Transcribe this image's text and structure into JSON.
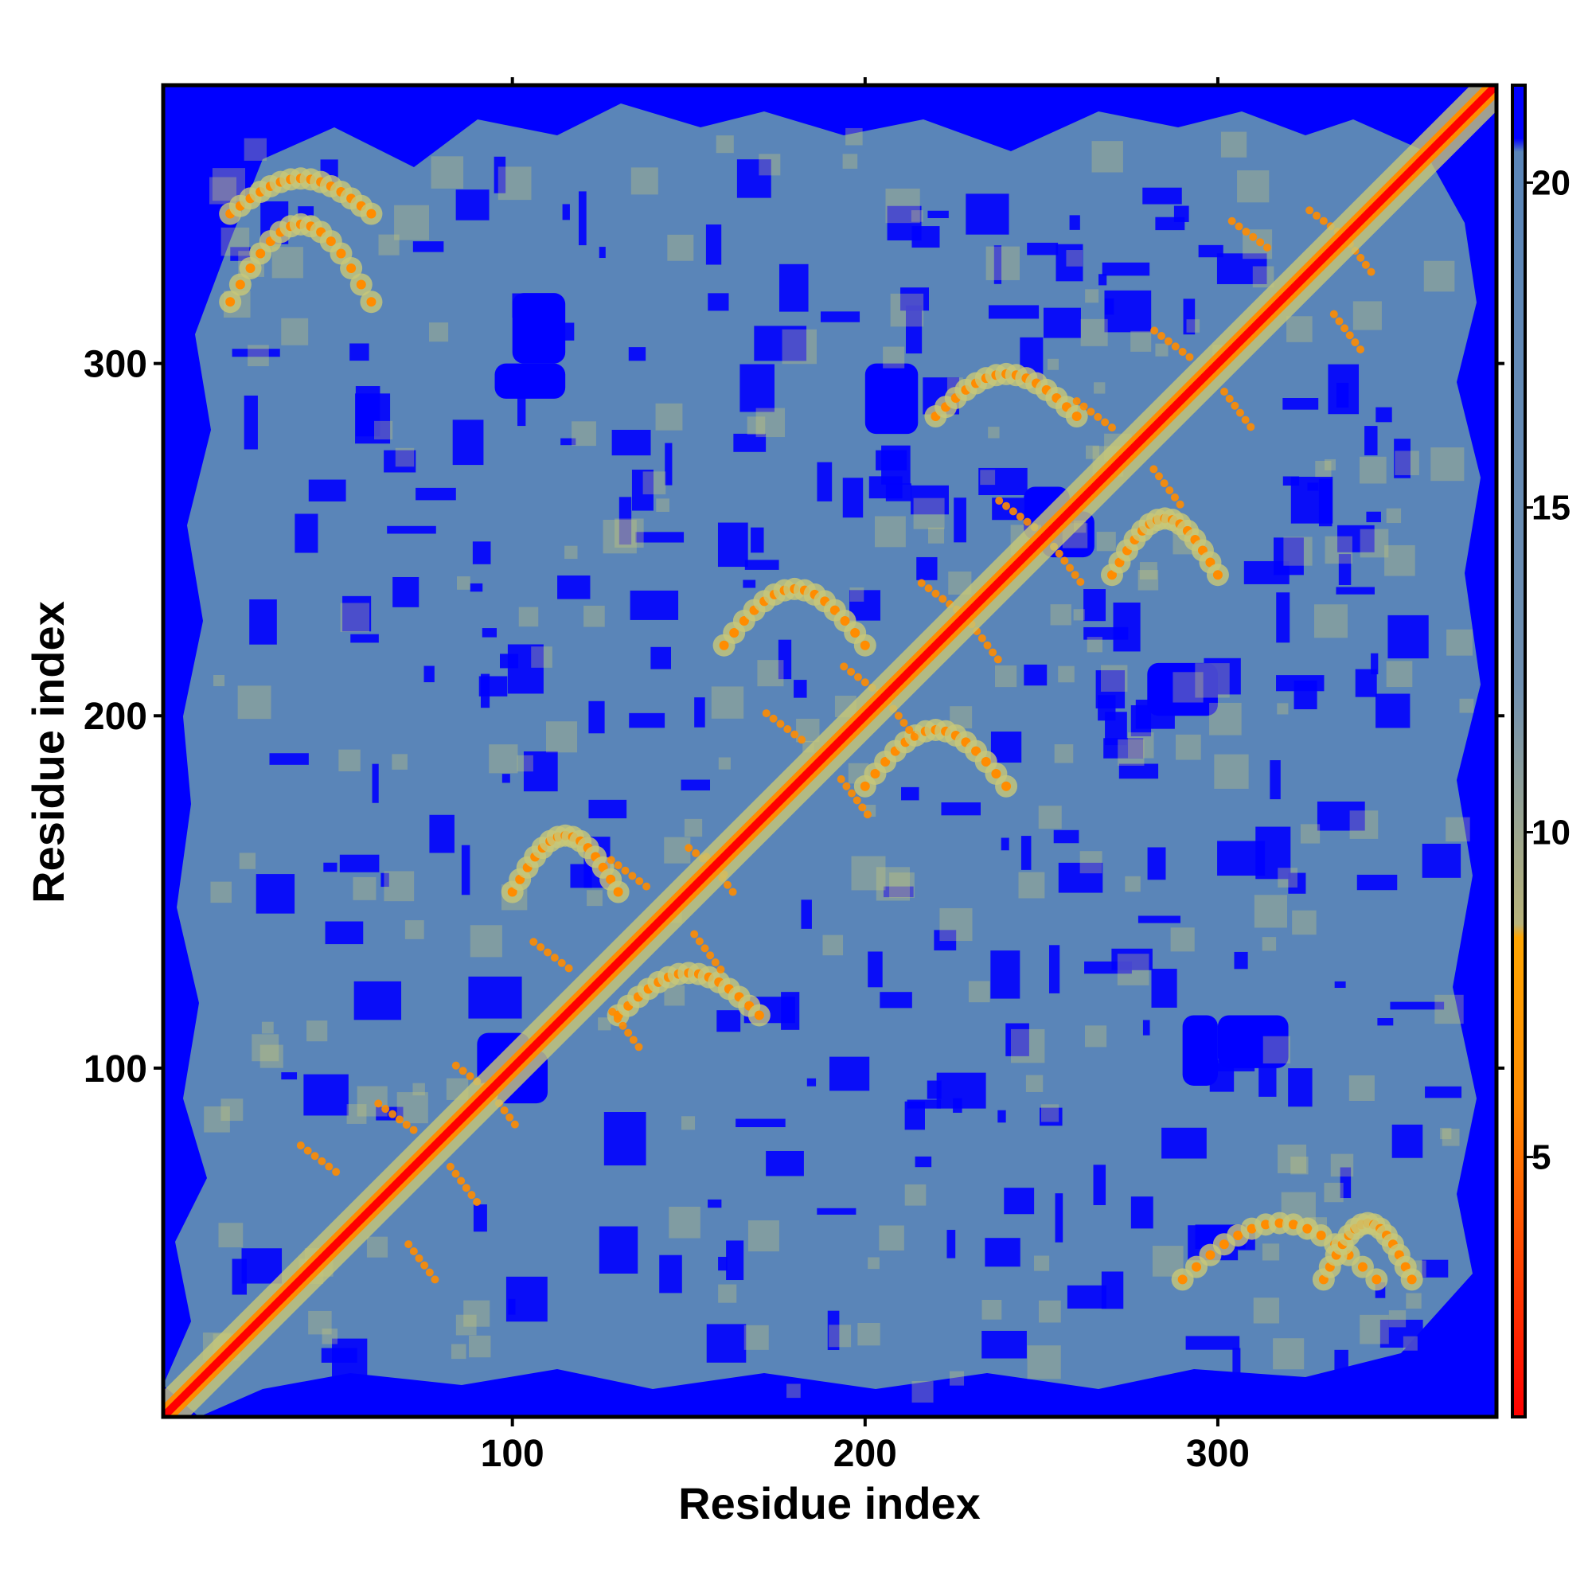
{
  "chart_data": {
    "type": "heatmap",
    "title": "",
    "xlabel": "Residue index",
    "ylabel": "Residue index",
    "xlim": [
      1,
      379
    ],
    "ylim": [
      1,
      379
    ],
    "x_ticks": [
      100,
      200,
      300
    ],
    "y_ticks": [
      100,
      200,
      300
    ],
    "colorbar": {
      "range": [
        1,
        21.5
      ],
      "ticks": [
        5,
        10,
        15,
        20
      ],
      "stops": [
        {
          "value": 1,
          "color": "#ff0000"
        },
        {
          "value": 6,
          "color": "#ff8c00"
        },
        {
          "value": 8.5,
          "color": "#ffa500"
        },
        {
          "value": 11,
          "color": "#9aaa88"
        },
        {
          "value": 14,
          "color": "#5e87b8"
        },
        {
          "value": 20,
          "color": "#5a85b8"
        },
        {
          "value": 21,
          "color": "#0000ff"
        }
      ]
    },
    "colors": {
      "far_contact": "#0000ff",
      "background_distance": "#5a85b8",
      "mid_distance": "#c8c878",
      "close_contact": "#ff8c00",
      "diagonal": "#ff0000"
    },
    "matrix_description": "symmetric residue-residue distance map, diagonal values near 0, off-diagonal mostly ~15-20, regions > 20 shown as dark blue",
    "contact_bands": [
      {
        "i_range": [
          20,
          60
        ],
        "j_range": [
          290,
          345
        ]
      },
      {
        "i_range": [
          100,
          130
        ],
        "j_range": [
          130,
          170
        ]
      },
      {
        "i_range": [
          160,
          200
        ],
        "j_range": [
          200,
          240
        ]
      },
      {
        "i_range": [
          220,
          260
        ],
        "j_range": [
          270,
          300
        ]
      },
      {
        "i_range": [
          330,
          355
        ],
        "j_range": [
          20,
          60
        ]
      }
    ],
    "far_regions": [
      {
        "i_range": [
          95,
          115
        ],
        "j_range": [
          290,
          300
        ]
      },
      {
        "i_range": [
          90,
          105
        ],
        "j_range": [
          95,
          110
        ]
      },
      {
        "i_range": [
          250,
          265
        ],
        "j_range": [
          245,
          258
        ]
      },
      {
        "i_range": [
          300,
          320
        ],
        "j_range": [
          100,
          115
        ]
      },
      {
        "i_range": [
          280,
          300
        ],
        "j_range": [
          200,
          215
        ]
      }
    ]
  }
}
